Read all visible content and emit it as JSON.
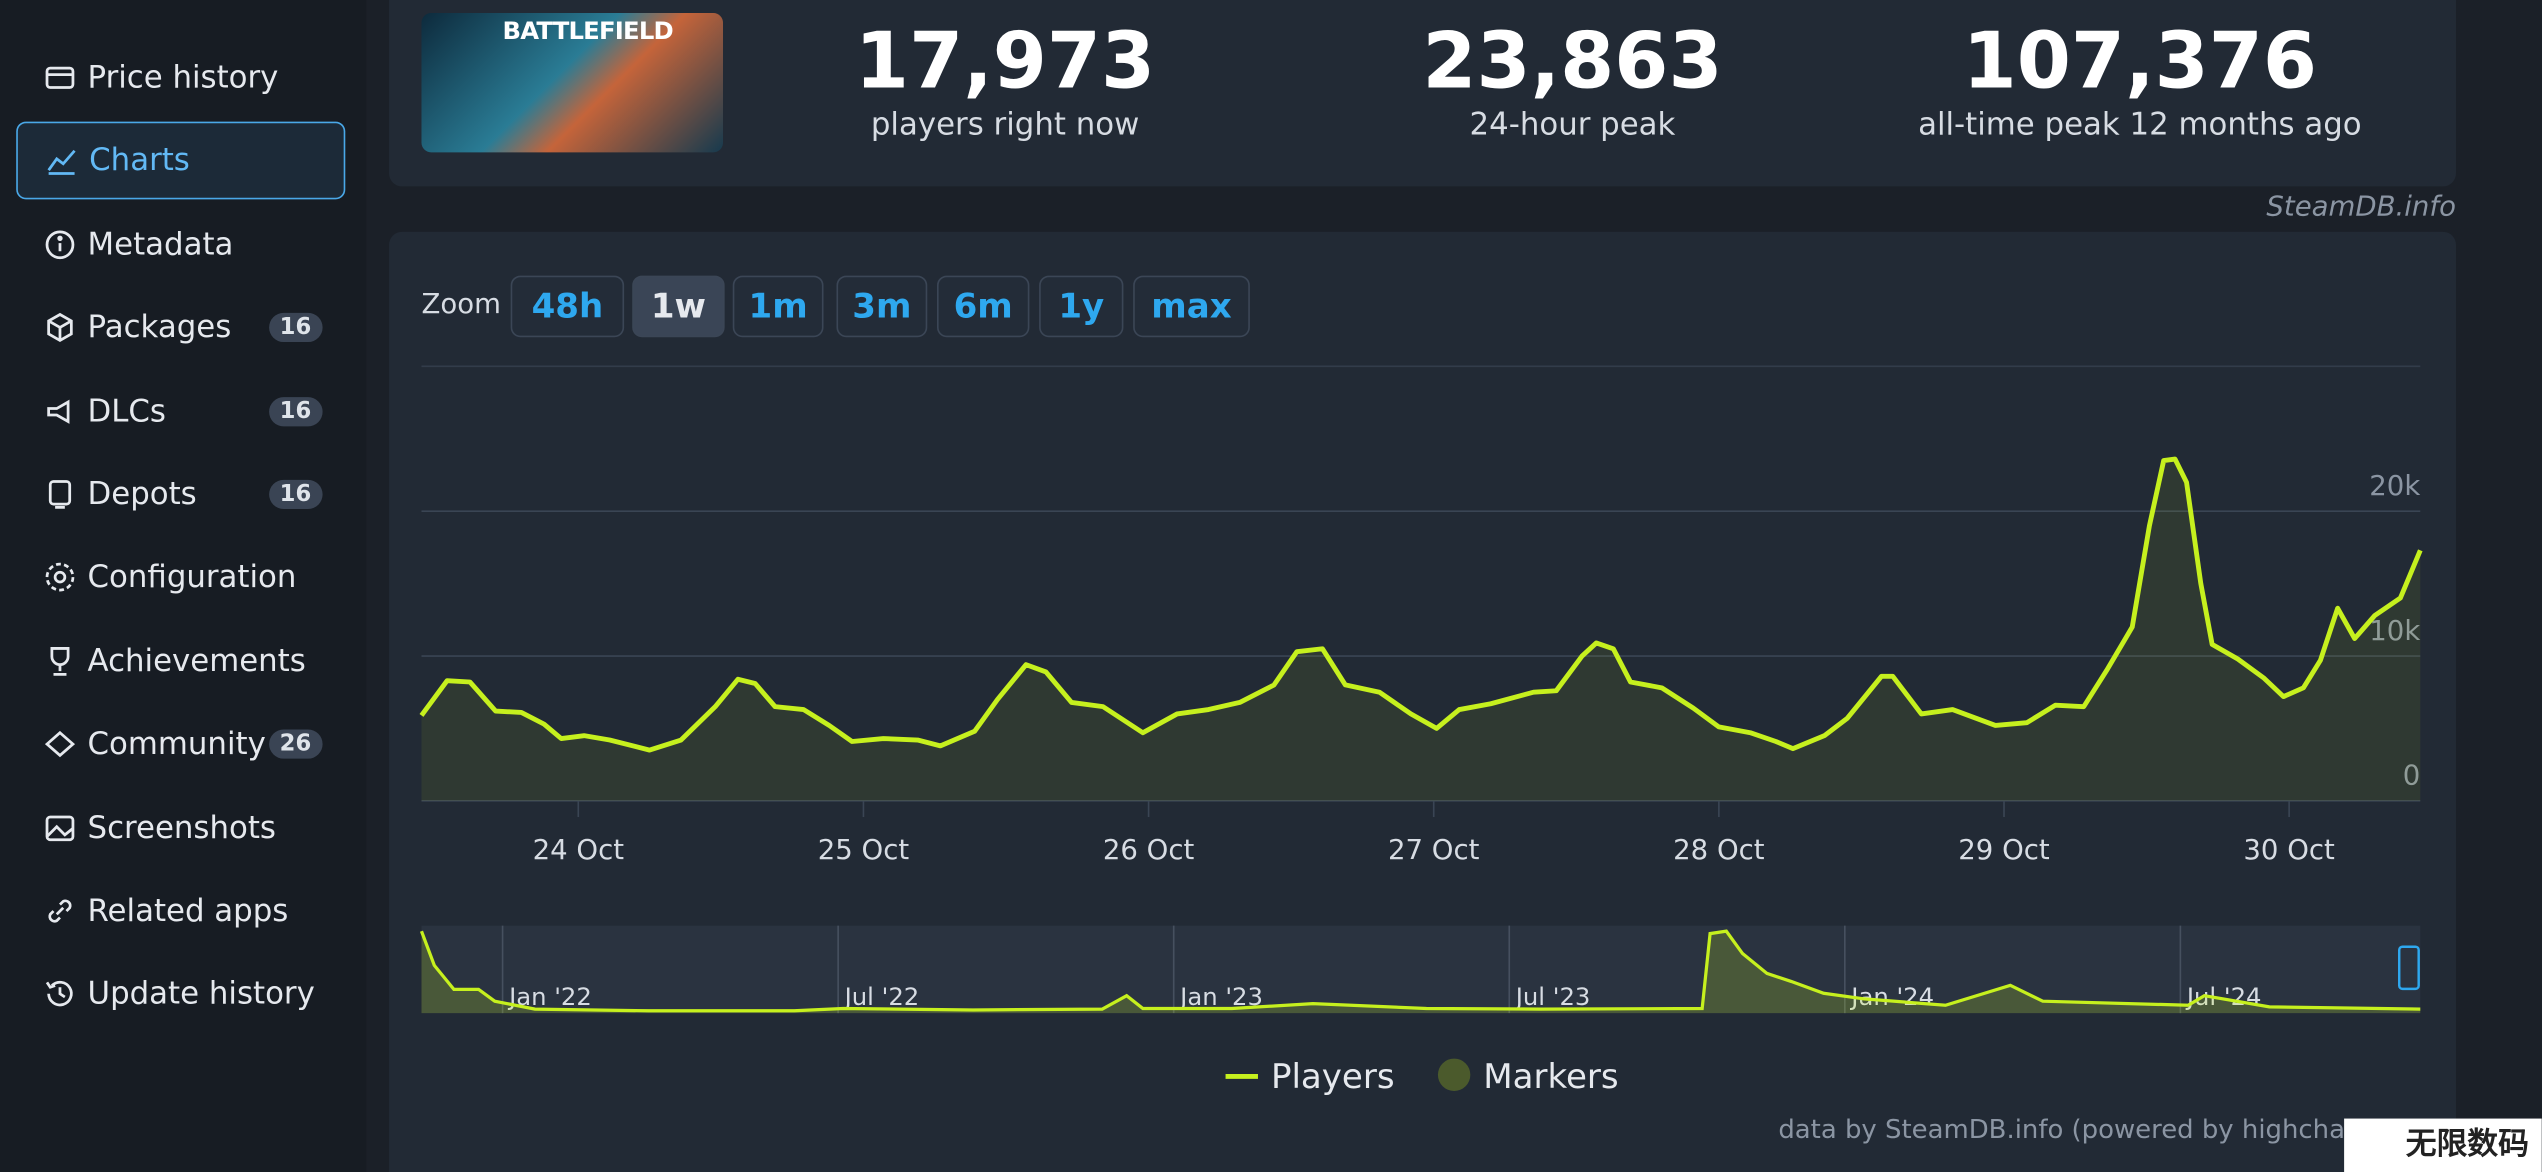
{
  "sidebar": {
    "items": [
      {
        "label": "Price history"
      },
      {
        "label": "Charts"
      },
      {
        "label": "Metadata"
      },
      {
        "label": "Packages",
        "badge": 16
      },
      {
        "label": "DLCs",
        "badge": 16
      },
      {
        "label": "Depots",
        "badge": 16
      },
      {
        "label": "Configuration"
      },
      {
        "label": "Achievements"
      },
      {
        "label": "Community",
        "badge": 26
      },
      {
        "label": "Screenshots"
      },
      {
        "label": "Related apps"
      },
      {
        "label": "Update history"
      }
    ]
  },
  "header": {
    "image_text": "BATTLEFIELD",
    "stats": [
      {
        "value": "17,973",
        "label": "players right now"
      },
      {
        "value": "23,863",
        "label": "24-hour peak"
      },
      {
        "value": "107,376",
        "label": "all-time peak 12 months ago"
      }
    ],
    "source": "SteamDB.info"
  },
  "zoom": {
    "label": "Zoom",
    "buttons": [
      "48h",
      "1w",
      "1m",
      "3m",
      "6m",
      "1y",
      "max"
    ]
  },
  "chart_data": [
    {
      "type": "line",
      "color": "#c6f01e",
      "grid": true,
      "x": [
        -0.55,
        -0.46,
        -0.38,
        -0.29,
        -0.2,
        -0.12,
        -0.06,
        0.02,
        0.11,
        0.25,
        0.36,
        0.48,
        0.56,
        0.62,
        0.69,
        0.79,
        0.88,
        0.96,
        1.07,
        1.19,
        1.27,
        1.39,
        1.47,
        1.57,
        1.64,
        1.73,
        1.84,
        1.98,
        2.1,
        2.21,
        2.32,
        2.44,
        2.52,
        2.61,
        2.69,
        2.81,
        2.92,
        3.01,
        3.09,
        3.2,
        3.35,
        3.43,
        3.52,
        3.57,
        3.63,
        3.69,
        3.8,
        3.91,
        4.0,
        4.11,
        4.2,
        4.26,
        4.37,
        4.45,
        4.57,
        4.61,
        4.71,
        4.82,
        4.97,
        5.08,
        5.18,
        5.28,
        5.36,
        5.45,
        5.51,
        5.56,
        5.6,
        5.64,
        5.69,
        5.73,
        5.82,
        5.91,
        5.98,
        6.05,
        6.11,
        6.17,
        6.23,
        6.3,
        6.39,
        6.46
      ],
      "values": [
        5900,
        8300,
        8200,
        6200,
        6100,
        5300,
        4300,
        4500,
        4200,
        3500,
        4200,
        6500,
        8400,
        8100,
        6500,
        6300,
        5200,
        4100,
        4300,
        4200,
        3800,
        4800,
        7000,
        9400,
        8900,
        6800,
        6500,
        4700,
        6000,
        6300,
        6800,
        8000,
        10300,
        10500,
        8000,
        7500,
        6000,
        5000,
        6300,
        6700,
        7500,
        7600,
        10000,
        10900,
        10500,
        8200,
        7800,
        6400,
        5100,
        4700,
        4100,
        3600,
        4500,
        5700,
        8600,
        8600,
        6000,
        6300,
        5200,
        5400,
        6600,
        6500,
        9000,
        12000,
        19000,
        23500,
        23600,
        22000,
        15000,
        10800,
        9800,
        8500,
        7200,
        7800,
        9700,
        13300,
        11200,
        12800,
        14000,
        17300
      ],
      "xlim": [
        -0.55,
        6.46
      ],
      "xticks": [
        {
          "value": 0,
          "label": "24 Oct"
        },
        {
          "value": 1,
          "label": "25 Oct"
        },
        {
          "value": 2,
          "label": "26 Oct"
        },
        {
          "value": 3,
          "label": "27 Oct"
        },
        {
          "value": 4,
          "label": "28 Oct"
        },
        {
          "value": 5,
          "label": "29 Oct"
        },
        {
          "value": 6,
          "label": "30 Oct"
        }
      ],
      "ylim": [
        0,
        30000
      ],
      "yticks": [
        0,
        {
          "value": 10000,
          "label": "10k"
        },
        {
          "value": 20000,
          "label": "20k"
        }
      ]
    },
    {
      "type": "area",
      "grid": true,
      "series": [
        {
          "name": "Players",
          "color": "#c6f01e",
          "x": [
            -1.45,
            -1.22,
            -0.87,
            -0.43,
            -0.14,
            0.58,
            2.61,
            5.22,
            6.09,
            8.41,
            10.72,
            11.16,
            11.45,
            13.04,
            14.49,
            16.52,
            18.55,
            21.45,
            21.59,
            21.88,
            22.17,
            22.61,
            23.04,
            23.62,
            24.35,
            25.8,
            26.96,
            27.54,
            30.14,
            30.43,
            31.59,
            34.29
          ],
          "values": [
            103000,
            60000,
            30000,
            30000,
            15000,
            5000,
            3000,
            3000,
            6000,
            4000,
            5000,
            22000,
            6000,
            6000,
            12000,
            6000,
            5000,
            6000,
            100000,
            103000,
            75000,
            50000,
            40000,
            25000,
            18000,
            10000,
            35000,
            15000,
            10000,
            22000,
            8000,
            5000
          ]
        },
        {
          "name": "Markers",
          "color": "#4b5a2c",
          "values": []
        }
      ],
      "xlim": [
        -1.45,
        34.29
      ],
      "xticks": [
        {
          "value": 0,
          "label": "Jan '22"
        },
        {
          "value": 6,
          "label": "Jul '22"
        },
        {
          "value": 12,
          "label": "Jan '23"
        },
        {
          "value": 18,
          "label": "Jul '23"
        },
        {
          "value": 24,
          "label": "Jan '24"
        },
        {
          "value": 30,
          "label": "Jul '24"
        }
      ],
      "ylim": [
        0,
        110000
      ],
      "credit": "data by SteamDB.info (powered by highcharts",
      "watermark": "无限数码"
    }
  ]
}
